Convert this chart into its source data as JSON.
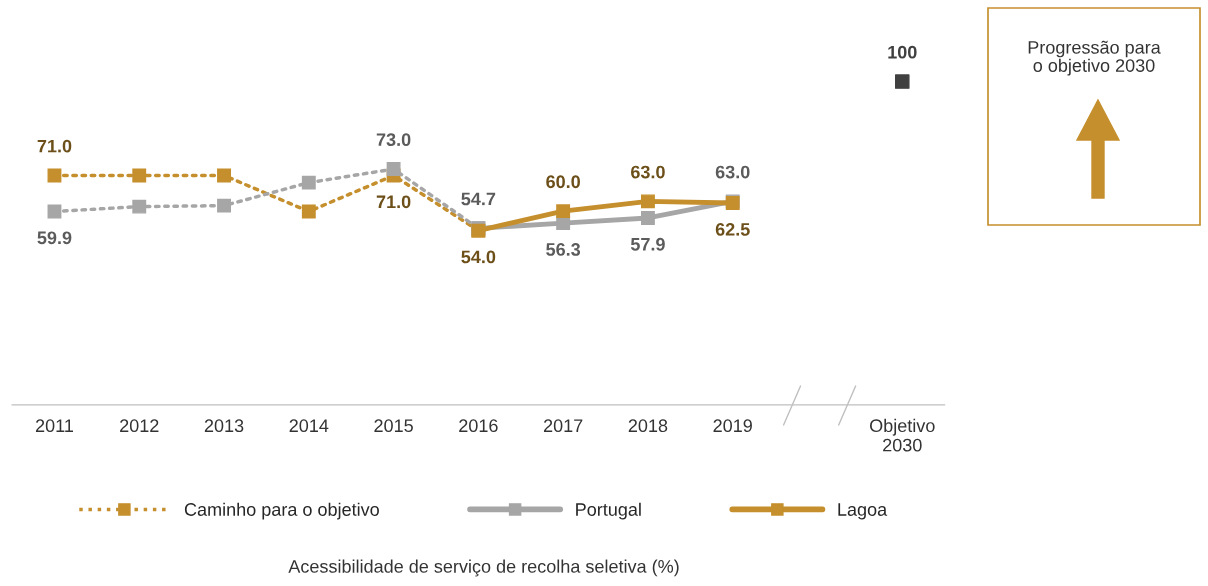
{
  "chart_data": {
    "type": "line",
    "categories": [
      "2011",
      "2012",
      "2013",
      "2014",
      "2015",
      "2016",
      "2017",
      "2018",
      "2019",
      null,
      "Objetivo 2030"
    ],
    "tick_labels": "x",
    "grid": false,
    "legend": "bottom",
    "series": [
      {
        "name": "Caminho para o objetivo",
        "color": "#c58f2d",
        "line_style": "dotted",
        "marker": "square",
        "values": [
          71.0,
          71.0,
          71.0,
          59.9,
          71.0,
          54.0,
          null,
          null,
          null,
          null,
          null
        ],
        "value_labels": [
          "71.0",
          null,
          null,
          null,
          "71.0",
          null,
          null,
          null,
          null,
          null,
          null
        ]
      },
      {
        "color": "#a6a6a6",
        "line_style": "dotted",
        "marker": "square",
        "values": [
          59.9,
          61.4,
          61.7,
          68.8,
          73.0,
          54.7,
          null,
          null,
          null,
          null,
          null
        ],
        "value_labels": [
          "59.9",
          null,
          null,
          null,
          "73.0",
          null,
          null,
          null,
          null,
          null,
          null
        ]
      },
      {
        "name": "Portugal",
        "color": "#a6a6a6",
        "line_style": "solid",
        "marker": "square",
        "values": [
          null,
          null,
          null,
          null,
          null,
          54.7,
          56.3,
          57.9,
          63.0,
          null,
          null
        ],
        "value_labels": [
          null,
          null,
          null,
          null,
          null,
          "54.7",
          "56.3",
          "57.9",
          "63.0",
          null,
          null
        ]
      },
      {
        "name": "Lagoa",
        "color": "#c58f2d",
        "line_style": "solid",
        "marker": "square",
        "values": [
          null,
          null,
          null,
          null,
          null,
          54.0,
          60.0,
          63.0,
          62.5,
          null,
          null
        ],
        "value_labels": [
          null,
          null,
          null,
          null,
          null,
          "54.0",
          "60.0",
          "63.0",
          "62.5",
          null,
          null
        ]
      },
      {
        "type": "scatter",
        "color": "#404040",
        "marker": "square",
        "values": [
          null,
          null,
          null,
          null,
          null,
          null,
          null,
          null,
          null,
          null,
          100
        ],
        "value_labels": [
          null,
          null,
          null,
          null,
          null,
          null,
          null,
          null,
          null,
          null,
          "100"
        ]
      }
    ],
    "annotations": [
      "Progressão para o objetivo 2030",
      "Acessibilidade de serviço de recolha seletiva (%)"
    ]
  }
}
